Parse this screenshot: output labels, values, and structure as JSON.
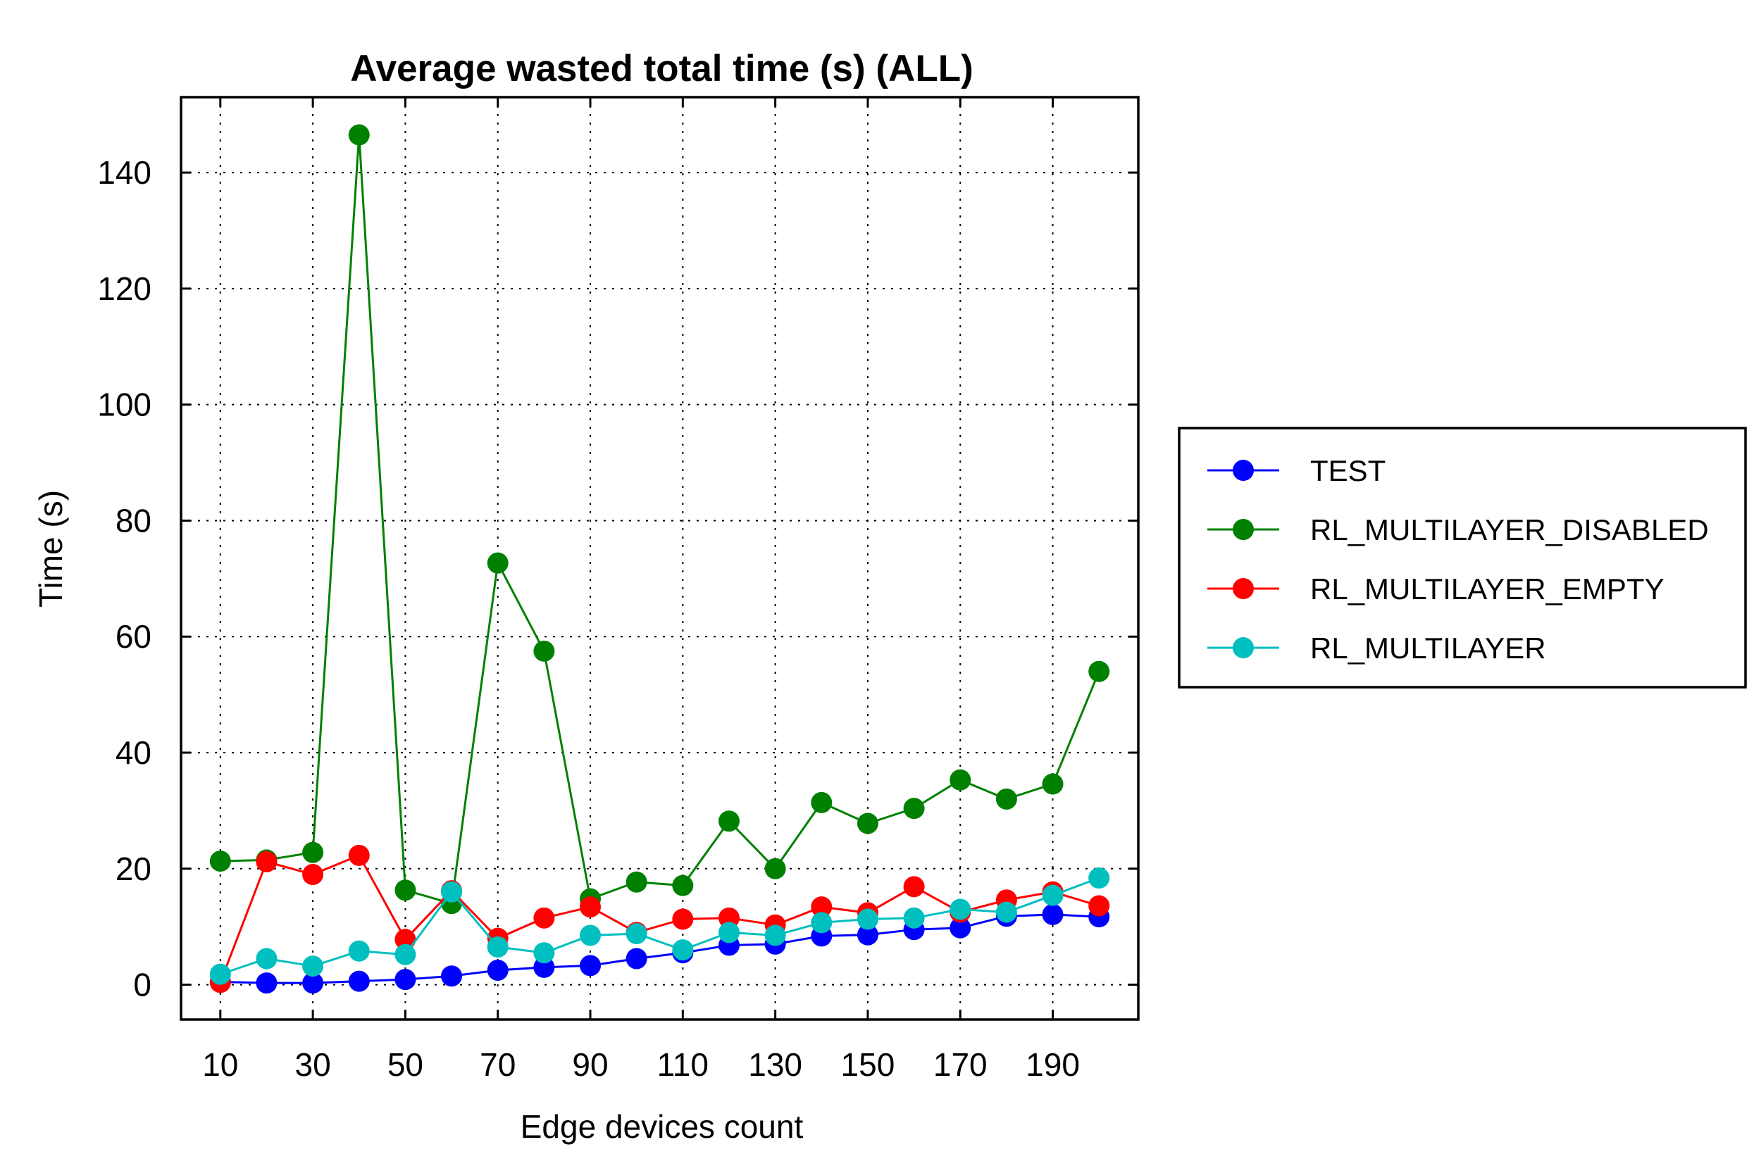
{
  "chart_data": {
    "type": "line",
    "title": "Average wasted total time (s) (ALL)",
    "xlabel": "Edge devices count",
    "ylabel": "Time (s)",
    "xlim": [
      1.5,
      208.5
    ],
    "ylim": [
      -6,
      153
    ],
    "x_ticks": [
      10,
      30,
      50,
      70,
      90,
      110,
      130,
      150,
      170,
      190
    ],
    "y_ticks": [
      0,
      20,
      40,
      60,
      80,
      100,
      120,
      140
    ],
    "x_grid": [
      10,
      30,
      50,
      70,
      90,
      110,
      130,
      150,
      170,
      190
    ],
    "grid": true,
    "legend_position": "right",
    "x": [
      10,
      20,
      30,
      40,
      50,
      60,
      70,
      80,
      90,
      100,
      110,
      120,
      130,
      140,
      150,
      160,
      170,
      180,
      190,
      200
    ],
    "series": [
      {
        "name": "TEST",
        "color": "#0000ff",
        "values": [
          0.5,
          0.3,
          0.3,
          0.6,
          0.9,
          1.5,
          2.5,
          3.0,
          3.3,
          4.5,
          5.5,
          6.8,
          7.0,
          8.4,
          8.6,
          9.5,
          9.8,
          11.8,
          12.1,
          11.7
        ]
      },
      {
        "name": "RL_MULTILAYER_DISABLED",
        "color": "#008000",
        "values": [
          21.3,
          21.5,
          22.8,
          146.5,
          16.3,
          14.0,
          72.7,
          57.5,
          14.8,
          17.7,
          17.1,
          28.2,
          20.0,
          31.4,
          27.8,
          30.4,
          35.3,
          32.0,
          34.6,
          54.0
        ]
      },
      {
        "name": "RL_MULTILAYER_EMPTY",
        "color": "#ff0000",
        "values": [
          0.4,
          21.2,
          19.0,
          22.3,
          7.8,
          16.2,
          8.0,
          11.5,
          13.4,
          9.0,
          11.3,
          11.5,
          10.3,
          13.4,
          12.4,
          16.9,
          12.5,
          14.6,
          16.0,
          13.6
        ]
      },
      {
        "name": "RL_MULTILAYER",
        "color": "#00bfbf",
        "values": [
          1.8,
          4.5,
          3.2,
          5.8,
          5.2,
          16.0,
          6.5,
          5.5,
          8.5,
          8.8,
          6.0,
          9.0,
          8.5,
          10.7,
          11.3,
          11.5,
          13.0,
          12.5,
          15.4,
          18.4
        ]
      }
    ]
  }
}
